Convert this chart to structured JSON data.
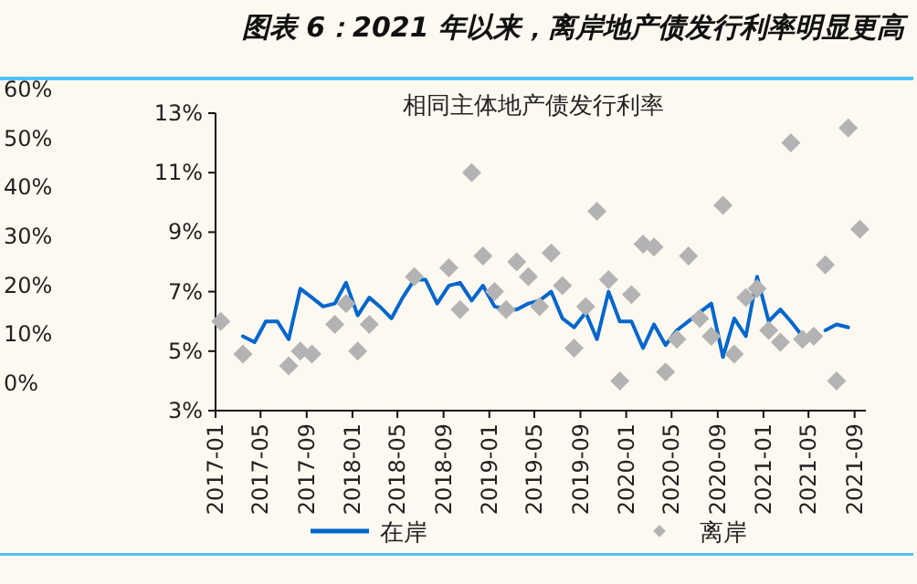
{
  "chart_data": {
    "type": "line",
    "title": "图表 6：2021 年以来，离岸地产债发行利率明显更高",
    "subtitle": "相同主体地产债发行利率",
    "xlim": [
      "2017-01-01",
      "2021-10-01"
    ],
    "xticks": [
      "2017-01",
      "2017-05",
      "2017-09",
      "2018-01",
      "2018-05",
      "2018-09",
      "2019-01",
      "2019-05",
      "2019-09",
      "2020-01",
      "2020-05",
      "2020-09",
      "2021-01",
      "2021-05",
      "2021-09"
    ],
    "ylim": [
      3,
      13
    ],
    "yticks": [
      {
        "value": 3,
        "label": "3%"
      },
      {
        "value": 5,
        "label": "5%"
      },
      {
        "value": 7,
        "label": "7%"
      },
      {
        "value": 9,
        "label": "9%"
      },
      {
        "value": 11,
        "label": "11%"
      },
      {
        "value": 13,
        "label": "13%"
      }
    ],
    "y2lim": [
      0,
      60
    ],
    "y2ticks": [
      {
        "value": 0,
        "label": "0%"
      },
      {
        "value": 10,
        "label": "10%"
      },
      {
        "value": 20,
        "label": "20%"
      },
      {
        "value": 30,
        "label": "30%"
      },
      {
        "value": 40,
        "label": "40%"
      },
      {
        "value": 50,
        "label": "50%"
      },
      {
        "value": 60,
        "label": "60%"
      }
    ],
    "legend": "bottom",
    "series": [
      {
        "name": "在岸",
        "type": "line",
        "color": "#0066cc",
        "line_style": "solid",
        "x": [
          "2017-03-15",
          "2017-04-15",
          "2017-05-15",
          "2017-06-15",
          "2017-07-15",
          "2017-08-15",
          "2017-09-15",
          "2017-10-15",
          "2017-11-15",
          "2017-12-15",
          "2018-01-15",
          "2018-02-15",
          "2018-03-15",
          "2018-04-15",
          "2018-05-15",
          "2018-06-15",
          "2018-07-15",
          "2018-08-15",
          "2018-09-15",
          "2018-10-15",
          "2018-11-15",
          "2018-12-15",
          "2019-01-15",
          "2019-02-15",
          "2019-03-15",
          "2019-04-15",
          "2019-05-15",
          "2019-06-15",
          "2019-07-15",
          "2019-08-15",
          "2019-09-15",
          "2019-10-15",
          "2019-11-15",
          "2019-12-15",
          "2020-01-15",
          "2020-02-15",
          "2020-03-15",
          "2020-04-15",
          "2020-05-15",
          "2020-06-15",
          "2020-07-15",
          "2020-08-15",
          "2020-09-15",
          "2020-10-15",
          "2020-11-15",
          "2020-12-15",
          "2021-01-15",
          "2021-02-15",
          "2021-03-15",
          "2021-04-15"
        ],
        "values": [
          5.5,
          5.3,
          6.0,
          6.0,
          5.4,
          7.1,
          6.8,
          6.5,
          6.6,
          7.3,
          6.2,
          6.8,
          6.5,
          6.1,
          6.8,
          7.4,
          7.4,
          6.6,
          7.2,
          7.3,
          6.7,
          7.2,
          6.5,
          6.4,
          6.4,
          6.6,
          6.7,
          7.0,
          6.1,
          5.8,
          6.3,
          5.4,
          7.0,
          6.0,
          6.0,
          5.1,
          5.9,
          5.2,
          5.7,
          6.0,
          6.3,
          6.6,
          4.8,
          6.1,
          5.5,
          7.5,
          6.0,
          6.4,
          6.0,
          5.5
        ]
      },
      {
        "type": "line",
        "color": "#0066cc",
        "line_style": "solid",
        "x": [
          "2021-06-15",
          "2021-07-15",
          "2021-08-15"
        ],
        "values": [
          5.7,
          5.9,
          5.8
        ]
      },
      {
        "name": "离岸",
        "type": "scatter",
        "color": "#b3b3b3",
        "marker": "diamond",
        "x": [
          "2017-01-15",
          "2017-03-15",
          "2017-07-15",
          "2017-08-15",
          "2017-09-15",
          "2017-11-15",
          "2017-12-15",
          "2018-01-15",
          "2018-02-15",
          "2018-06-15",
          "2018-09-15",
          "2018-10-15",
          "2018-11-15",
          "2018-12-15",
          "2019-01-15",
          "2019-02-15",
          "2019-03-15",
          "2019-04-15",
          "2019-05-15",
          "2019-06-15",
          "2019-07-15",
          "2019-08-15",
          "2019-09-15",
          "2019-10-15",
          "2019-11-15",
          "2019-12-15",
          "2020-01-15",
          "2020-02-15",
          "2020-03-15",
          "2020-04-15",
          "2020-05-15",
          "2020-06-15",
          "2020-07-15",
          "2020-08-15",
          "2020-09-15",
          "2020-10-15",
          "2020-11-15",
          "2020-12-15",
          "2021-01-15",
          "2021-02-15",
          "2021-03-15",
          "2021-04-15",
          "2021-05-15",
          "2021-06-15",
          "2021-07-15",
          "2021-08-15",
          "2021-09-15"
        ],
        "values": [
          6.0,
          4.9,
          4.5,
          5.0,
          4.9,
          5.9,
          6.6,
          5.0,
          5.9,
          7.5,
          7.8,
          6.4,
          11.0,
          8.2,
          7.0,
          6.4,
          8.0,
          7.5,
          6.5,
          8.3,
          7.2,
          5.1,
          6.5,
          9.7,
          7.4,
          4.0,
          6.9,
          8.6,
          8.5,
          4.3,
          5.4,
          8.2,
          6.1,
          5.5,
          9.9,
          4.9,
          6.8,
          7.1,
          5.7,
          5.3,
          12.0,
          5.4,
          5.5,
          7.9,
          4.0,
          12.5,
          9.1
        ]
      }
    ]
  }
}
